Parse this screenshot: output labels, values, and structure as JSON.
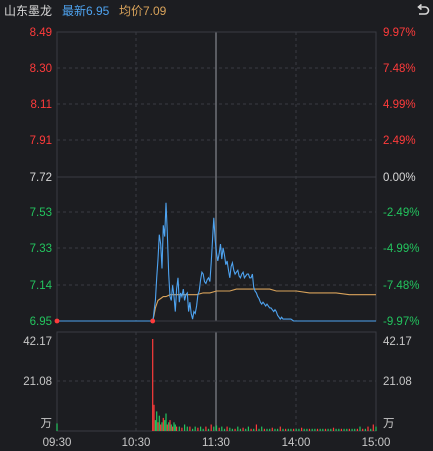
{
  "header": {
    "stock_name": "山东墨龙",
    "latest_label": "最新6.95",
    "avg_label": "均价7.09"
  },
  "colors": {
    "up": "#ff3b3b",
    "down": "#23c45e",
    "neutral": "#d8d8d8",
    "price_line": "#4ea3f0",
    "avg_line": "#d9a35b",
    "grid": "#3a3c42",
    "background": "#1c1d21",
    "latest_text": "#4ea3f0",
    "avg_text": "#d9a35b"
  },
  "icons": {
    "back": "undo-arrow-icon"
  },
  "price_axis": {
    "ticks": [
      "8.49",
      "8.30",
      "8.11",
      "7.91",
      "7.72",
      "7.53",
      "7.33",
      "7.14",
      "6.95"
    ],
    "pct_ticks": [
      "9.97%",
      "7.48%",
      "4.99%",
      "2.49%",
      "0.00%",
      "-2.49%",
      "-4.99%",
      "-7.48%",
      "-9.97%"
    ],
    "prev_close": 7.72,
    "min": 6.95,
    "max": 8.49
  },
  "volume_axis": {
    "ticks": [
      "42.17",
      "21.08",
      "万"
    ],
    "max": 42.17
  },
  "time_axis": {
    "labels": [
      "09:30",
      "10:30",
      "11:30",
      "14:00",
      "15:00"
    ]
  },
  "chart_data": {
    "type": "line",
    "x_unit": "minutes since 09:30",
    "series": [
      {
        "key": "price",
        "x": [
          0,
          72,
          72.5,
          73,
          74,
          75,
          76,
          77,
          78,
          79,
          80,
          81,
          82,
          83,
          84,
          85,
          86,
          87,
          88,
          89,
          90,
          91,
          92,
          93,
          94,
          95,
          96,
          97,
          98,
          99,
          100,
          101,
          102,
          103,
          104,
          105,
          106,
          107,
          108,
          109,
          110,
          111,
          112,
          113,
          114,
          115,
          116,
          117,
          118,
          119,
          120,
          121,
          122,
          123,
          124,
          125,
          126,
          127,
          128,
          129,
          130,
          131,
          132,
          133,
          134,
          135,
          136,
          137,
          138,
          139,
          140,
          141,
          142,
          143,
          144,
          145,
          146,
          147,
          148,
          149,
          150,
          151,
          152,
          153,
          154,
          155,
          156,
          157,
          158,
          159,
          160,
          161,
          162,
          163,
          164,
          165,
          166,
          167,
          168,
          169,
          170,
          172,
          174,
          176,
          178,
          180,
          185,
          190,
          195,
          200,
          205,
          210,
          215,
          220,
          225,
          230,
          235,
          240
        ],
        "values": [
          6.95,
          6.95,
          6.97,
          7.0,
          7.06,
          7.18,
          7.28,
          7.41,
          7.36,
          7.23,
          7.46,
          7.4,
          7.58,
          7.42,
          7.2,
          7.08,
          7.06,
          7.14,
          7.08,
          7.0,
          7.12,
          7.18,
          7.05,
          7.1,
          7.08,
          7.12,
          7.06,
          7.09,
          7.1,
          7.0,
          7.05,
          6.99,
          6.96,
          7.0,
          6.99,
          7.03,
          7.09,
          7.11,
          7.17,
          7.21,
          7.2,
          7.16,
          7.15,
          7.17,
          7.18,
          7.16,
          7.26,
          7.38,
          7.5,
          7.38,
          7.31,
          7.27,
          7.31,
          7.36,
          7.28,
          7.34,
          7.3,
          7.25,
          7.27,
          7.22,
          7.18,
          7.24,
          7.26,
          7.22,
          7.2,
          7.21,
          7.22,
          7.19,
          7.18,
          7.2,
          7.21,
          7.18,
          7.19,
          7.2,
          7.2,
          7.18,
          7.18,
          7.2,
          7.13,
          7.11,
          7.1,
          7.08,
          7.07,
          7.05,
          7.04,
          7.05,
          7.04,
          7.03,
          7.04,
          7.03,
          7.02,
          7.02,
          7.01,
          7.0,
          7.01,
          7.0,
          6.98,
          6.97,
          6.96,
          6.97,
          6.96,
          6.96,
          6.96,
          6.96,
          6.95,
          6.95,
          6.95,
          6.95,
          6.95,
          6.95,
          6.95,
          6.95,
          6.95,
          6.95,
          6.95,
          6.95,
          6.95,
          6.95
        ]
      },
      {
        "key": "avg",
        "x": [
          0,
          72,
          73,
          74,
          75,
          76,
          78,
          80,
          82,
          85,
          88,
          92,
          96,
          100,
          105,
          110,
          115,
          120,
          125,
          130,
          135,
          140,
          145,
          150,
          155,
          160,
          165,
          170,
          180,
          190,
          200,
          210,
          220,
          230,
          240
        ],
        "values": [
          6.95,
          6.95,
          6.98,
          7.02,
          7.04,
          7.06,
          7.07,
          7.08,
          7.08,
          7.09,
          7.09,
          7.09,
          7.09,
          7.09,
          7.09,
          7.1,
          7.1,
          7.11,
          7.11,
          7.11,
          7.12,
          7.12,
          7.12,
          7.12,
          7.12,
          7.12,
          7.11,
          7.11,
          7.11,
          7.1,
          7.1,
          7.1,
          7.09,
          7.09,
          7.09
        ]
      }
    ],
    "volume": {
      "x": [
        0,
        72,
        73,
        74,
        75,
        76,
        77,
        78,
        79,
        80,
        81,
        82,
        83,
        84,
        85,
        86,
        87,
        88,
        89,
        90,
        92,
        94,
        96,
        98,
        100,
        102,
        104,
        106,
        108,
        110,
        112,
        114,
        116,
        118,
        120,
        122,
        124,
        126,
        128,
        130,
        132,
        134,
        136,
        138,
        140,
        142,
        144,
        146,
        148,
        150,
        152,
        154,
        156,
        158,
        160,
        162,
        164,
        166,
        168,
        170,
        172,
        174,
        176,
        178,
        180,
        182,
        184,
        186,
        188,
        190,
        192,
        194,
        196,
        198,
        200,
        202,
        204,
        206,
        208,
        210,
        212,
        214,
        216,
        218,
        220,
        222,
        224,
        226,
        228,
        230,
        232,
        234,
        236,
        238,
        240
      ],
      "values": [
        3.5,
        42.17,
        12,
        5,
        9,
        4,
        7,
        3,
        4,
        6,
        5,
        8,
        3,
        4,
        5,
        3,
        2,
        4,
        3,
        2,
        2,
        1.5,
        3,
        2,
        2,
        1,
        2,
        1.5,
        2,
        1,
        2,
        1,
        3,
        2,
        2.5,
        1.5,
        2,
        1,
        2,
        1.5,
        1,
        1,
        2,
        1,
        1.5,
        1,
        2,
        1,
        1,
        3,
        1,
        2,
        1,
        1,
        1,
        1.5,
        1,
        1,
        2,
        1,
        1,
        1,
        1,
        1,
        1,
        1,
        1.5,
        1,
        1,
        1,
        1,
        1,
        1,
        1,
        1,
        1,
        1,
        1,
        1.5,
        1,
        1,
        1,
        1,
        1,
        1,
        1,
        1,
        1,
        2,
        1,
        1,
        2,
        1,
        3,
        2
      ],
      "colors": [
        "down",
        "up",
        "up",
        "down",
        "down",
        "up",
        "down",
        "up",
        "down",
        "up",
        "down",
        "down",
        "up",
        "down",
        "up",
        "down",
        "up",
        "down",
        "down",
        "up",
        "down",
        "up",
        "down",
        "down",
        "up",
        "down",
        "down",
        "up",
        "down",
        "down",
        "up",
        "down",
        "up",
        "down",
        "down",
        "up",
        "down",
        "down",
        "up",
        "down",
        "down",
        "up",
        "down",
        "down",
        "up",
        "down",
        "down",
        "up",
        "down",
        "up",
        "down",
        "down",
        "up",
        "down",
        "down",
        "up",
        "down",
        "down",
        "up",
        "down",
        "up",
        "down",
        "down",
        "up",
        "down",
        "down",
        "up",
        "down",
        "down",
        "up",
        "down",
        "down",
        "up",
        "down",
        "down",
        "up",
        "down",
        "down",
        "up",
        "down",
        "down",
        "up",
        "down",
        "down",
        "up",
        "down",
        "down",
        "up",
        "down",
        "up",
        "down",
        "up",
        "down",
        "up",
        "down"
      ]
    }
  }
}
